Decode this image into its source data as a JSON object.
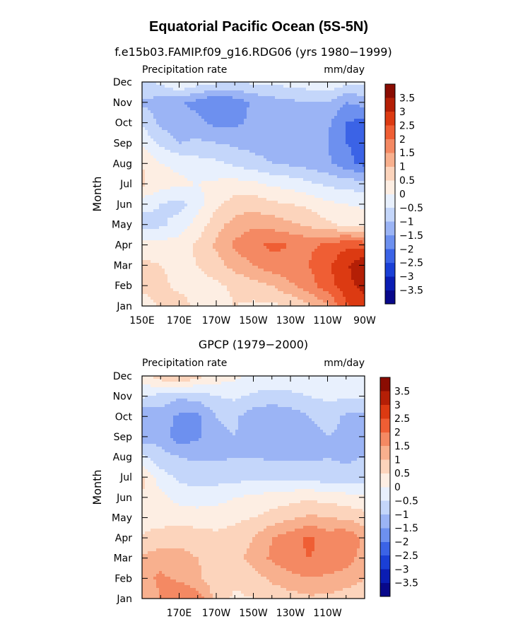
{
  "title": "Equatorial Pacific Ocean (5S-5N)",
  "colors": {
    "palette": [
      "#08088a",
      "#0a1db3",
      "#1a3fd6",
      "#3b63e6",
      "#6d90ef",
      "#9bb4f5",
      "#c4d6fa",
      "#e8f0fd",
      "#fdeee3",
      "#fcd4bc",
      "#f8b08e",
      "#f48963",
      "#ef5e34",
      "#dc3a12",
      "#b41f06",
      "#8a0c02"
    ]
  },
  "chart_data": [
    {
      "type": "heatmap",
      "subtitle": "f.e15b03.FAMIP.f09_g16.RDG06 (yrs 1980−1999)",
      "left_label": "Precipitation rate",
      "right_label": "mm/day",
      "ylabel": "Month",
      "xlabel": "",
      "y_ticks": [
        "Jan",
        "Feb",
        "Mar",
        "Apr",
        "May",
        "Jun",
        "Jul",
        "Aug",
        "Sep",
        "Oct",
        "Nov",
        "Dec"
      ],
      "x_ticks": [
        "150E",
        "170E",
        "170W",
        "150W",
        "130W",
        "110W",
        "90W"
      ],
      "colorbar_labels": [
        "3.5",
        "3",
        "2.5",
        "2",
        "1.5",
        "1",
        "0.5",
        "0",
        "−0.5",
        "−1",
        "−1.5",
        "−2",
        "−2.5",
        "−3",
        "−3.5"
      ],
      "x_range": [
        150,
        270
      ],
      "cols": [
        150,
        160,
        170,
        180,
        190,
        200,
        210,
        220,
        230,
        240,
        250,
        260,
        270
      ],
      "z": [
        [
          0.2,
          0.6,
          0.7,
          0.4,
          0.3,
          0.5,
          0.4,
          0.4,
          0.5,
          0.9,
          1.4,
          2.4,
          2.7
        ],
        [
          0.7,
          0.6,
          0.4,
          0.3,
          0.4,
          0.6,
          0.8,
          1.0,
          1.4,
          1.8,
          2.3,
          2.8,
          3.2
        ],
        [
          0.6,
          0.5,
          0.4,
          0.5,
          0.8,
          1.2,
          1.5,
          1.8,
          1.9,
          2.0,
          2.4,
          2.9,
          3.5
        ],
        [
          0.3,
          0.2,
          0.2,
          0.6,
          1.1,
          1.6,
          1.9,
          2.1,
          2.0,
          1.9,
          2.1,
          2.4,
          2.3
        ],
        [
          -0.8,
          -0.6,
          -0.3,
          0.2,
          0.8,
          1.2,
          1.4,
          1.3,
          1.1,
          0.9,
          0.6,
          0.4,
          0.3
        ],
        [
          -0.3,
          -0.5,
          -0.7,
          -0.2,
          0.4,
          0.7,
          0.8,
          0.6,
          0.5,
          0.4,
          0.1,
          0.0,
          -0.1
        ],
        [
          0.6,
          0.2,
          0.1,
          0.0,
          0.1,
          0.2,
          0.1,
          -0.1,
          -0.2,
          -0.4,
          -0.6,
          -0.7,
          -0.8
        ],
        [
          0.5,
          0.0,
          -0.1,
          -0.3,
          -0.4,
          -0.6,
          -0.8,
          -1.0,
          -1.1,
          -1.2,
          -1.4,
          -1.8,
          -2.2
        ],
        [
          -0.1,
          -0.6,
          -1.0,
          -0.9,
          -1.0,
          -1.1,
          -1.2,
          -1.2,
          -1.2,
          -1.3,
          -1.5,
          -2.0,
          -2.2
        ],
        [
          -0.6,
          -1.1,
          -1.4,
          -1.3,
          -1.7,
          -1.6,
          -1.4,
          -1.2,
          -1.1,
          -1.2,
          -1.4,
          -2.0,
          -2.2
        ],
        [
          -1.1,
          -1.2,
          -1.4,
          -1.7,
          -2.0,
          -1.8,
          -1.4,
          -1.2,
          -1.1,
          -1.0,
          -1.0,
          -1.5,
          -1.3
        ],
        [
          -0.6,
          -0.4,
          0.1,
          -0.2,
          -0.4,
          -0.5,
          -0.4,
          -0.4,
          -0.3,
          -0.2,
          -0.1,
          -0.3,
          -0.4
        ]
      ]
    },
    {
      "type": "heatmap",
      "subtitle": "GPCP (1979−2000)",
      "left_label": "Precipitation rate",
      "right_label": "mm/day",
      "ylabel": "Month",
      "xlabel": "",
      "y_ticks": [
        "Jan",
        "Feb",
        "Mar",
        "Apr",
        "May",
        "Jun",
        "Jul",
        "Aug",
        "Sep",
        "Oct",
        "Nov",
        "Dec"
      ],
      "x_ticks": [
        "170E",
        "170W",
        "150W",
        "130W",
        "110W"
      ],
      "colorbar_labels": [
        "3.5",
        "3",
        "2.5",
        "2",
        "1.5",
        "1",
        "0.5",
        "0",
        "−0.5",
        "−1",
        "−1.5",
        "−2",
        "−2.5",
        "−3",
        "−3.5"
      ],
      "x_range": [
        150,
        270
      ],
      "cols": [
        150,
        160,
        170,
        180,
        190,
        200,
        210,
        220,
        230,
        240,
        250,
        260,
        270
      ],
      "z": [
        [
          1.2,
          1.5,
          2.0,
          1.8,
          0.8,
          0.4,
          0.5,
          0.7,
          0.8,
          0.9,
          0.9,
          0.7,
          0.6
        ],
        [
          1.3,
          1.6,
          1.4,
          1.1,
          0.7,
          0.6,
          0.8,
          1.1,
          1.3,
          1.5,
          1.4,
          1.3,
          1.0
        ],
        [
          1.1,
          1.3,
          1.2,
          1.0,
          0.7,
          0.8,
          1.2,
          1.6,
          1.9,
          2.0,
          1.9,
          1.7,
          1.3
        ],
        [
          0.5,
          0.7,
          0.8,
          0.7,
          0.6,
          0.7,
          1.0,
          1.5,
          1.8,
          2.1,
          1.8,
          1.9,
          1.4
        ],
        [
          0.4,
          0.3,
          0.3,
          0.3,
          0.3,
          0.4,
          0.5,
          0.7,
          0.9,
          1.1,
          1.0,
          0.9,
          0.7
        ],
        [
          0.5,
          0.2,
          -0.2,
          -0.3,
          -0.2,
          0.0,
          0.1,
          0.2,
          0.3,
          0.4,
          0.3,
          0.2,
          0.1
        ],
        [
          0.6,
          -0.3,
          -0.6,
          -0.7,
          -0.7,
          -0.7,
          -0.6,
          -0.6,
          -0.6,
          -0.7,
          -0.8,
          -0.8,
          -0.7
        ],
        [
          -0.4,
          -0.8,
          -1.0,
          -1.1,
          -1.1,
          -1.0,
          -1.0,
          -1.1,
          -1.1,
          -1.1,
          -1.0,
          -1.1,
          -1.0
        ],
        [
          -1.3,
          -1.2,
          -1.8,
          -1.6,
          -1.1,
          -1.0,
          -1.3,
          -1.4,
          -1.4,
          -1.3,
          -1.0,
          -1.2,
          -1.2
        ],
        [
          -1.4,
          -1.2,
          -1.6,
          -1.6,
          -1.0,
          -0.9,
          -1.3,
          -1.4,
          -1.3,
          -1.0,
          -0.7,
          -1.1,
          -1.1
        ],
        [
          -0.4,
          -0.7,
          -0.9,
          -0.8,
          -0.5,
          -0.4,
          -0.6,
          -0.7,
          -0.6,
          -0.5,
          -0.4,
          -0.4,
          -0.4
        ],
        [
          0.3,
          0.8,
          1.1,
          0.7,
          0.3,
          0.1,
          -0.1,
          -0.1,
          -0.2,
          -0.2,
          -0.2,
          -0.2,
          -0.3
        ]
      ]
    }
  ]
}
